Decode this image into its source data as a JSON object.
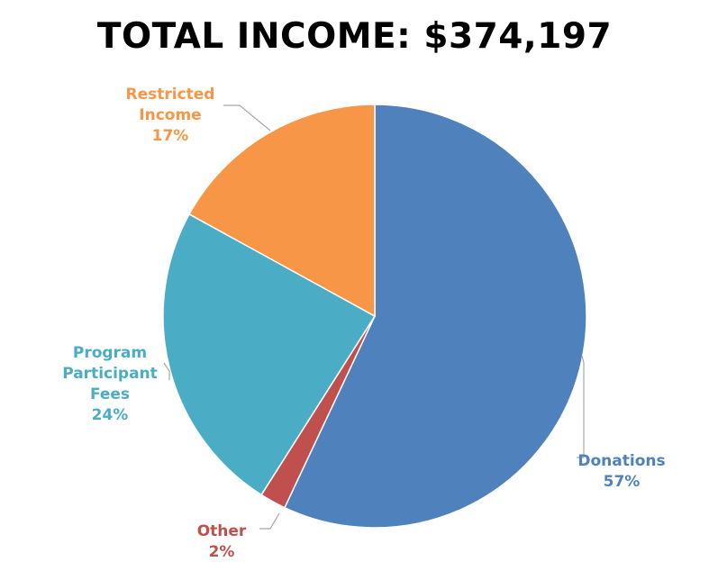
{
  "title": "TOTAL INCOME: $374,197",
  "chart_data": {
    "type": "pie",
    "title": "TOTAL INCOME: $374,197",
    "start_angle_deg": 0,
    "direction": "clockwise",
    "slices": [
      {
        "name": "Donations",
        "label_lines": [
          "Donations"
        ],
        "percent_label": "57%",
        "value": 57,
        "color": "#4F81BD"
      },
      {
        "name": "Other",
        "label_lines": [
          "Other"
        ],
        "percent_label": "2%",
        "value": 2,
        "color": "#C0504D"
      },
      {
        "name": "Program Participant Fees",
        "label_lines": [
          "Program",
          "Participant",
          "Fees"
        ],
        "percent_label": "24%",
        "value": 24,
        "color": "#4BACC6"
      },
      {
        "name": "Restricted Income",
        "label_lines": [
          "Restricted",
          "Income"
        ],
        "percent_label": "17%",
        "value": 17,
        "color": "#F79646"
      }
    ],
    "leader_line_color": "#a6a6a6"
  }
}
